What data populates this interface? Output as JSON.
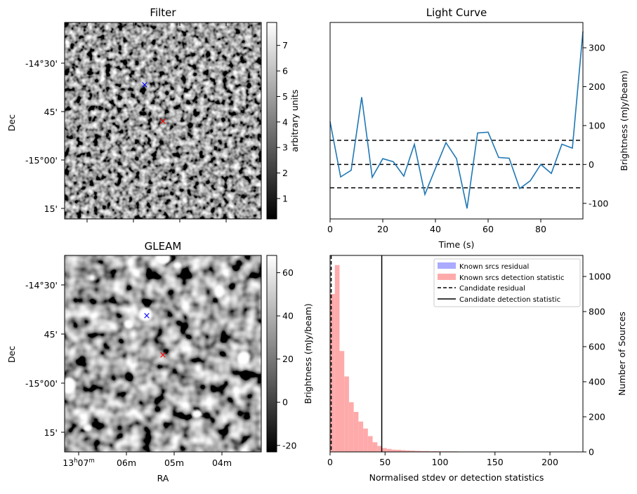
{
  "panels": {
    "filter": {
      "title": "Filter",
      "ylabel": "Dec",
      "dec_ticks": [
        "-14°30'",
        "45'",
        "-15°00'",
        "15'"
      ],
      "colorbar": {
        "label": "arbitrary units",
        "ticks": [
          "1",
          "2",
          "3",
          "4",
          "5",
          "6",
          "7"
        ],
        "range": [
          0.2,
          7.9
        ]
      }
    },
    "gleam": {
      "title": "GLEAM",
      "ylabel": "Dec",
      "xlabel": "RA",
      "dec_ticks": [
        "-14°30'",
        "45'",
        "-15°00'",
        "15'"
      ],
      "ra_ticks": [
        "06m",
        "05m",
        "04m"
      ],
      "ra_first_tick": {
        "hours": "13",
        "h_sup": "h",
        "minutes": "07",
        "m_sup": "m"
      },
      "colorbar": {
        "ticks": [
          "-20",
          "0",
          "20",
          "40",
          "60"
        ],
        "range": [
          -23,
          68
        ]
      }
    },
    "markers": {
      "candidate_color": "#ff0000",
      "known_color": "#0000ff"
    }
  },
  "chart_data": [
    {
      "type": "line",
      "title": "Light Curve",
      "xlabel": "Time (s)",
      "ylabel": "Brightness (mJy/beam)",
      "xlim": [
        0,
        96
      ],
      "ylim": [
        -140,
        365
      ],
      "x_ticks": [
        0,
        20,
        40,
        60,
        80
      ],
      "y_ticks": [
        -100,
        0,
        100,
        200,
        300
      ],
      "grid": false,
      "line_color": "#1f77b4",
      "series": [
        {
          "x": [
            0,
            4,
            8,
            12,
            16,
            20,
            24,
            28,
            32,
            36,
            40,
            44,
            48,
            52,
            56,
            60,
            64,
            68,
            72,
            76,
            80,
            84,
            88,
            92,
            96
          ],
          "values": [
            110,
            -32,
            -15,
            173,
            -33,
            15,
            7,
            -30,
            52,
            -77,
            -10,
            56,
            15,
            -113,
            81,
            83,
            18,
            16,
            -62,
            -42,
            0,
            -23,
            52,
            42,
            342
          ]
        }
      ],
      "hlines": [
        {
          "y": 62,
          "style": "dashed"
        },
        {
          "y": 0,
          "style": "dashed"
        },
        {
          "y": -60,
          "style": "dashed"
        }
      ]
    },
    {
      "type": "bar",
      "title": "",
      "xlabel": "Normalised stdev or detection statistics",
      "ylabel_left": "Brightness (mJy/beam)",
      "ylabel_right": "Number of Sources",
      "xlim": [
        0,
        230
      ],
      "ylim": [
        0,
        1120
      ],
      "x_ticks": [
        0,
        50,
        100,
        150,
        200
      ],
      "y_ticks": [
        0,
        200,
        400,
        600,
        800,
        1000
      ],
      "legend_position": "top-right",
      "legend": [
        {
          "label": "Known srcs residual",
          "kind": "patch",
          "color": "#aaaaff"
        },
        {
          "label": "Known srcs detection statistic",
          "kind": "patch",
          "color": "#ffaaaa"
        },
        {
          "label": "Candidate residual",
          "kind": "dashed",
          "color": "#000000"
        },
        {
          "label": "Candidate detection statistic",
          "kind": "solid",
          "color": "#000000"
        }
      ],
      "bin_width": 4.3,
      "bin_start": 0,
      "counts": [
        900,
        1065,
        575,
        430,
        283,
        228,
        173,
        133,
        90,
        55,
        34,
        22,
        17,
        13,
        12,
        10,
        8,
        7,
        6,
        5,
        5,
        4,
        4,
        3,
        3,
        3,
        3,
        2,
        2,
        2,
        2,
        2,
        2,
        2,
        1,
        1,
        1,
        1,
        1,
        1,
        1,
        1,
        1,
        1,
        1,
        1,
        1,
        1,
        1,
        1
      ],
      "candidate_residual": 1,
      "candidate_detection_statistic": 47
    }
  ]
}
